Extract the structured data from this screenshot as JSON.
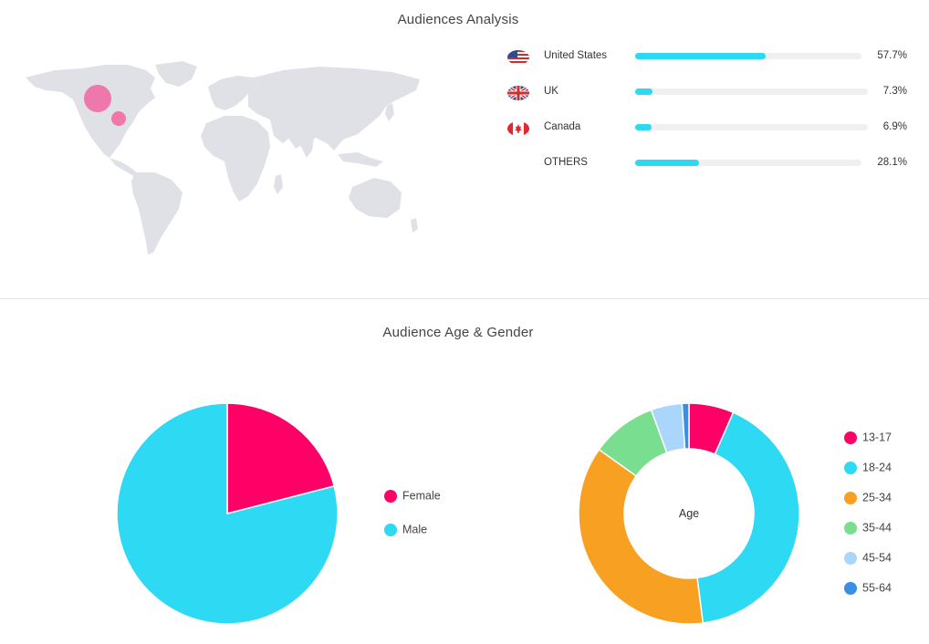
{
  "header": {
    "title": "Audiences Analysis"
  },
  "countries": [
    {
      "name": "United States",
      "percent_label": "57.7%",
      "value": 57.7,
      "flag": "us-flag-icon"
    },
    {
      "name": "UK",
      "percent_label": "7.3%",
      "value": 7.3,
      "flag": "uk-flag-icon"
    },
    {
      "name": "Canada",
      "percent_label": "6.9%",
      "value": 6.9,
      "flag": "canada-flag-icon"
    },
    {
      "name": "OTHERS",
      "percent_label": "28.1%",
      "value": 28.1,
      "flag": ""
    }
  ],
  "section2": {
    "title": "Audience Age & Gender"
  },
  "colors": {
    "bar": "#2bd9f3",
    "female": "#ff0066",
    "male": "#2dd9f3",
    "age_13_17": "#ff0066",
    "age_18_24": "#2dd9f3",
    "age_25_34": "#f7a021",
    "age_35_44": "#7ade90",
    "age_45_54": "#aad6fb",
    "age_55_64": "#3a8ee6",
    "map_land": "#dfe1e6",
    "map_bubble": "#f06ba4"
  },
  "chart_data": [
    {
      "type": "pie",
      "categories": [
        "Female",
        "Male"
      ],
      "values": [
        21,
        79
      ]
    },
    {
      "type": "pie",
      "center_label": "Age",
      "categories": [
        "13-17",
        "18-24",
        "25-34",
        "35-44",
        "45-54",
        "55-64"
      ],
      "values": [
        6.5,
        41,
        36.5,
        9.5,
        4.5,
        1
      ]
    }
  ]
}
